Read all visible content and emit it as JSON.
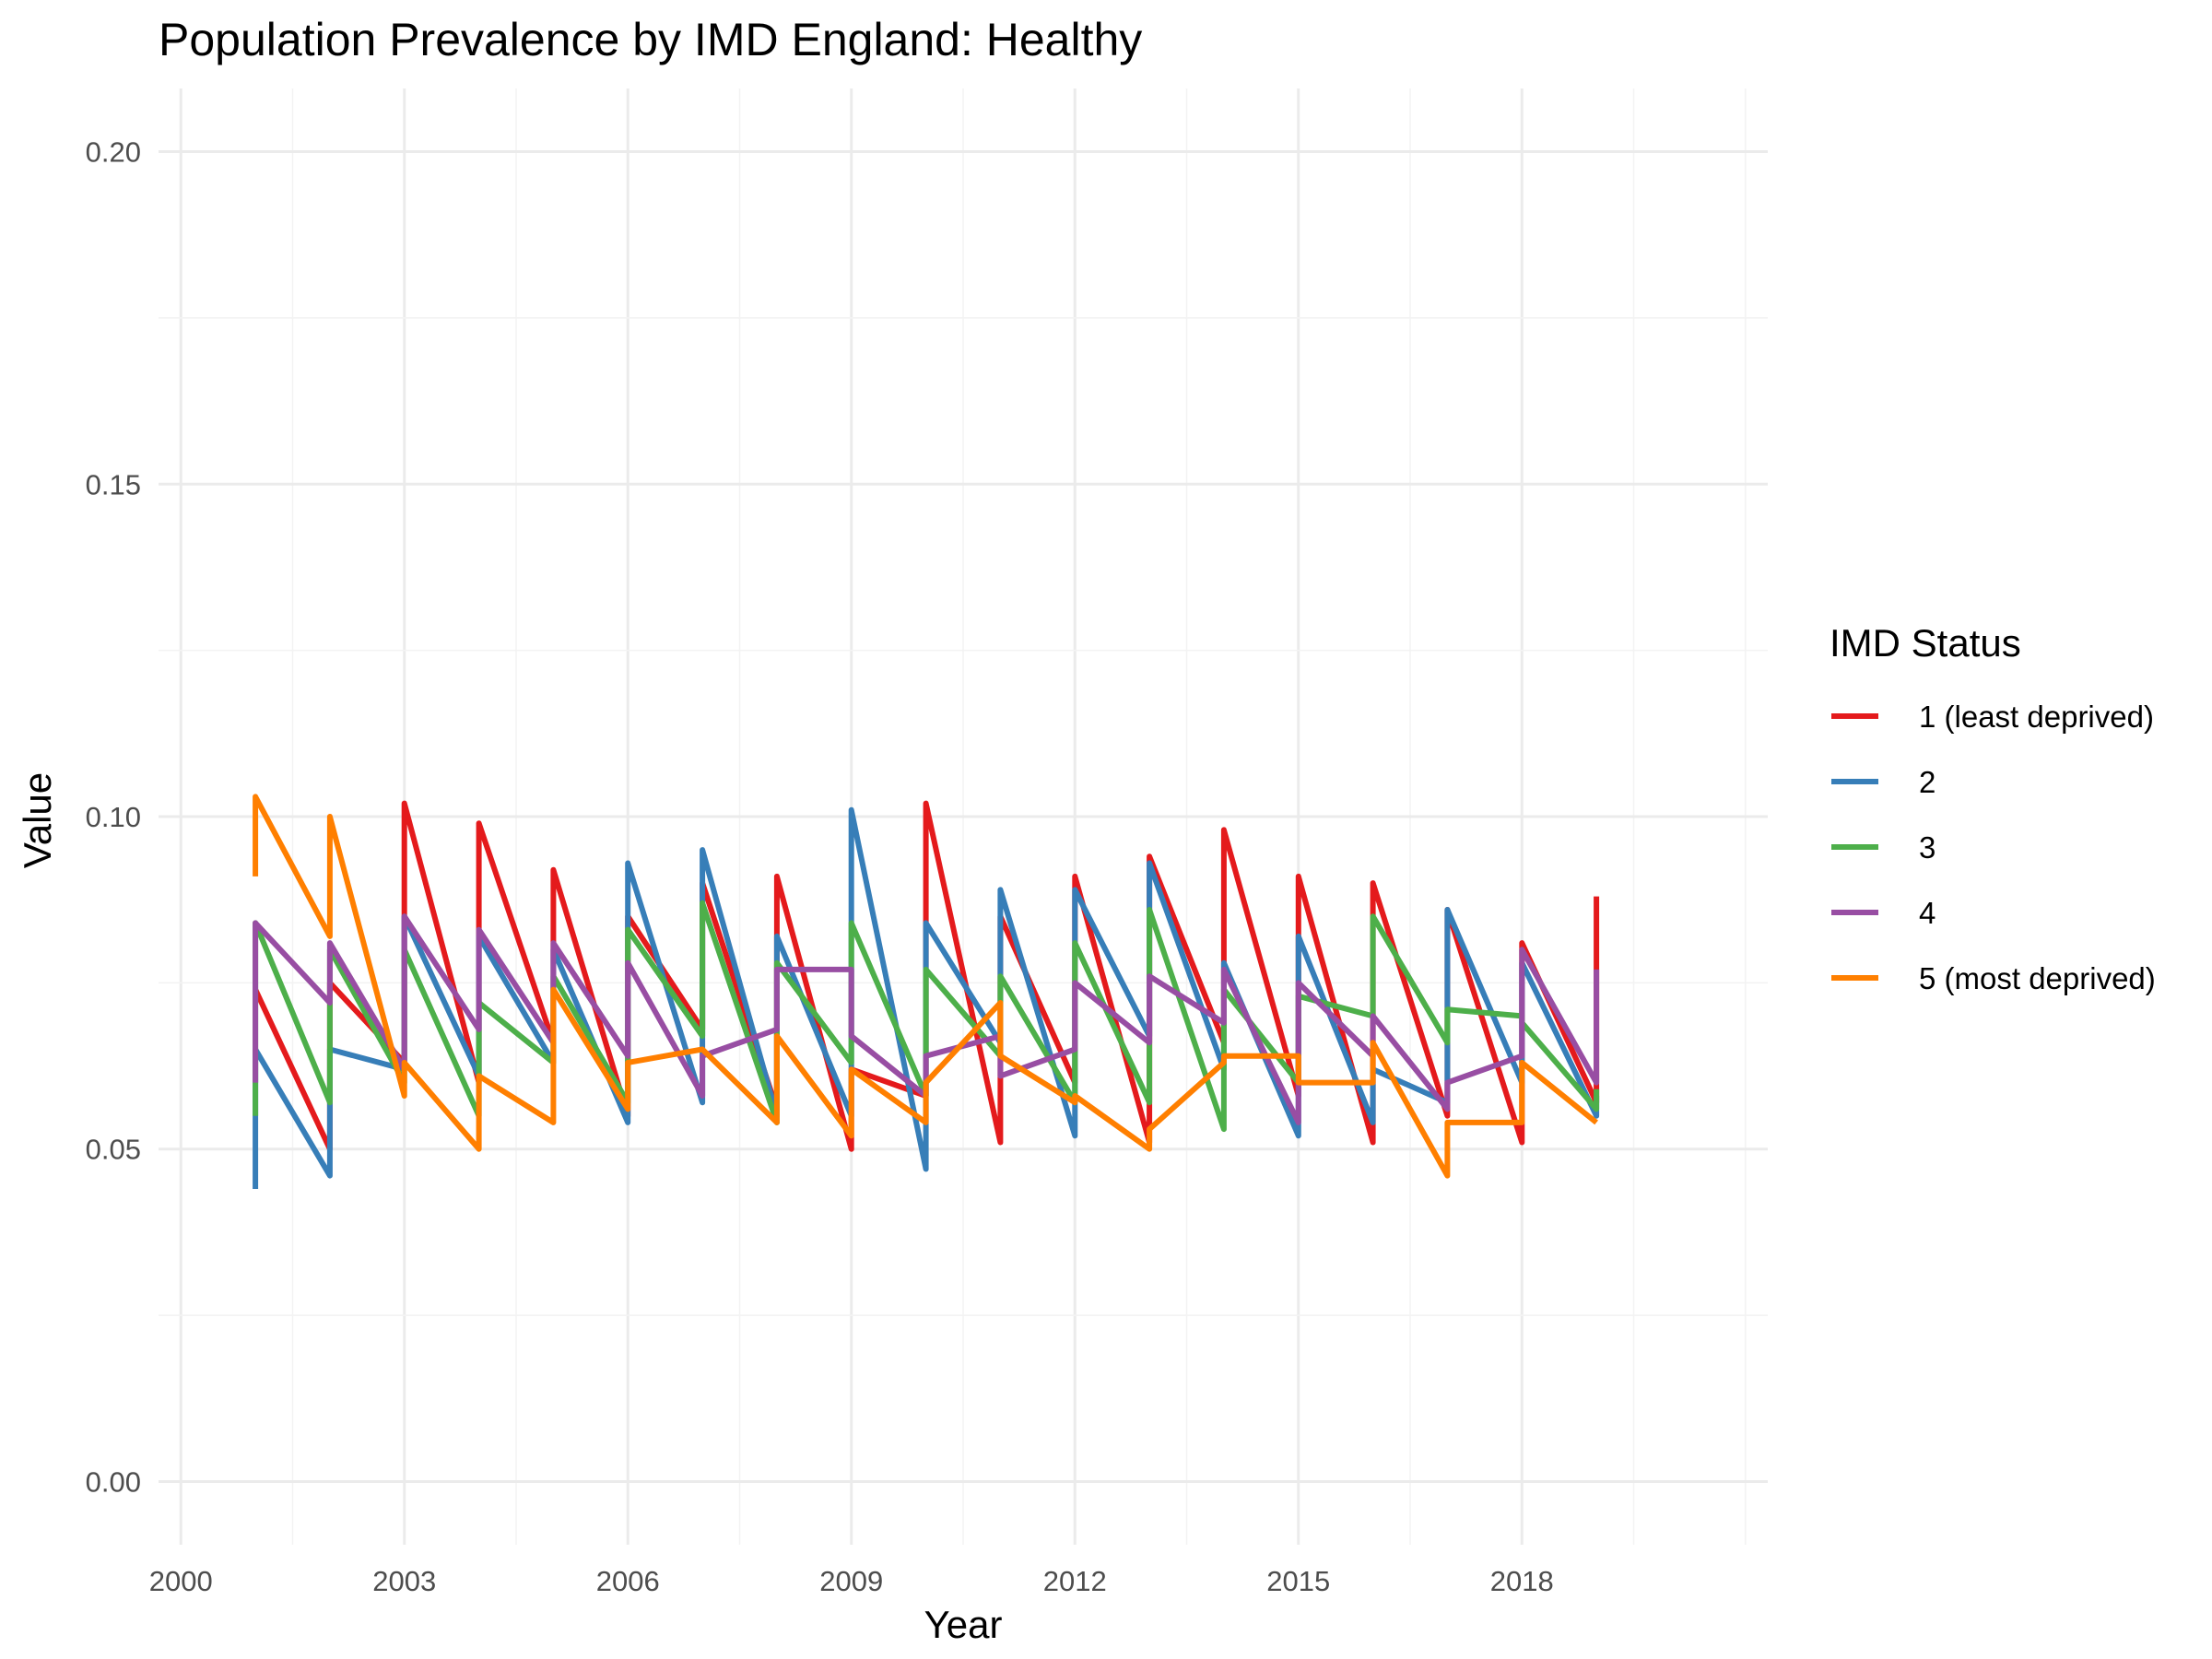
{
  "chart_data": {
    "type": "line",
    "title": "Population Prevalence by IMD England: Healthy",
    "xlabel": "Year",
    "ylabel": "Value",
    "xlim": [
      1999.7,
      2021.3
    ],
    "ylim": [
      -0.0095,
      0.2095
    ],
    "x_ticks": [
      2000,
      2003,
      2006,
      2009,
      2012,
      2015,
      2018
    ],
    "x_tick_labels": [
      "2000",
      "2003",
      "2006",
      "2009",
      "2012",
      "2015",
      "2018"
    ],
    "y_ticks": [
      0,
      0.05,
      0.1,
      0.15,
      0.2
    ],
    "y_tick_labels": [
      "0.00",
      "0.05",
      "0.10",
      "0.15",
      "0.20"
    ],
    "grid": true,
    "legend": {
      "title": "IMD Status",
      "position": "right"
    },
    "series": [
      {
        "name": "1 (least deprived)",
        "color": "#E41A1C",
        "points": [
          [
            2001,
            0.074
          ],
          [
            2002,
            0.05
          ],
          [
            2002,
            0.075
          ],
          [
            2003,
            0.063
          ],
          [
            2003,
            0.102
          ],
          [
            2004,
            0.06
          ],
          [
            2004,
            0.099
          ],
          [
            2005,
            0.066
          ],
          [
            2005,
            0.092
          ],
          [
            2006,
            0.055
          ],
          [
            2006,
            0.085
          ],
          [
            2007,
            0.068
          ],
          [
            2007,
            0.09
          ],
          [
            2008,
            0.056
          ],
          [
            2008,
            0.091
          ],
          [
            2009,
            0.05
          ],
          [
            2009,
            0.062
          ],
          [
            2010,
            0.058
          ],
          [
            2010,
            0.102
          ],
          [
            2011,
            0.051
          ],
          [
            2011,
            0.085
          ],
          [
            2012,
            0.06
          ],
          [
            2012,
            0.091
          ],
          [
            2013,
            0.051
          ],
          [
            2013,
            0.094
          ],
          [
            2014,
            0.066
          ],
          [
            2014,
            0.098
          ],
          [
            2015,
            0.058
          ],
          [
            2015,
            0.091
          ],
          [
            2016,
            0.051
          ],
          [
            2016,
            0.09
          ],
          [
            2017,
            0.055
          ],
          [
            2017,
            0.086
          ],
          [
            2018,
            0.051
          ],
          [
            2018,
            0.081
          ],
          [
            2019,
            0.057
          ],
          [
            2019,
            0.088
          ]
        ]
      },
      {
        "name": "2",
        "color": "#377EB8",
        "points": [
          [
            2001,
            0.044
          ],
          [
            2001,
            0.065
          ],
          [
            2002,
            0.046
          ],
          [
            2002,
            0.065
          ],
          [
            2003,
            0.062
          ],
          [
            2003,
            0.085
          ],
          [
            2004,
            0.061
          ],
          [
            2004,
            0.082
          ],
          [
            2005,
            0.063
          ],
          [
            2005,
            0.08
          ],
          [
            2006,
            0.054
          ],
          [
            2006,
            0.093
          ],
          [
            2007,
            0.057
          ],
          [
            2007,
            0.095
          ],
          [
            2008,
            0.055
          ],
          [
            2008,
            0.082
          ],
          [
            2009,
            0.055
          ],
          [
            2009,
            0.101
          ],
          [
            2010,
            0.047
          ],
          [
            2010,
            0.084
          ],
          [
            2011,
            0.066
          ],
          [
            2011,
            0.089
          ],
          [
            2012,
            0.052
          ],
          [
            2012,
            0.089
          ],
          [
            2013,
            0.067
          ],
          [
            2013,
            0.093
          ],
          [
            2014,
            0.062
          ],
          [
            2014,
            0.078
          ],
          [
            2015,
            0.052
          ],
          [
            2015,
            0.082
          ],
          [
            2016,
            0.054
          ],
          [
            2016,
            0.062
          ],
          [
            2017,
            0.057
          ],
          [
            2017,
            0.086
          ],
          [
            2018,
            0.06
          ],
          [
            2018,
            0.078
          ],
          [
            2019,
            0.055
          ],
          [
            2019,
            0.058
          ]
        ]
      },
      {
        "name": "3",
        "color": "#4DAF4A",
        "points": [
          [
            2001,
            0.055
          ],
          [
            2001,
            0.084
          ],
          [
            2002,
            0.057
          ],
          [
            2002,
            0.08
          ],
          [
            2003,
            0.06
          ],
          [
            2003,
            0.08
          ],
          [
            2004,
            0.055
          ],
          [
            2004,
            0.072
          ],
          [
            2005,
            0.063
          ],
          [
            2005,
            0.076
          ],
          [
            2006,
            0.057
          ],
          [
            2006,
            0.083
          ],
          [
            2007,
            0.067
          ],
          [
            2007,
            0.087
          ],
          [
            2008,
            0.054
          ],
          [
            2008,
            0.078
          ],
          [
            2009,
            0.063
          ],
          [
            2009,
            0.084
          ],
          [
            2010,
            0.058
          ],
          [
            2010,
            0.077
          ],
          [
            2011,
            0.064
          ],
          [
            2011,
            0.076
          ],
          [
            2012,
            0.057
          ],
          [
            2012,
            0.081
          ],
          [
            2013,
            0.057
          ],
          [
            2013,
            0.086
          ],
          [
            2014,
            0.053
          ],
          [
            2014,
            0.074
          ],
          [
            2015,
            0.06
          ],
          [
            2015,
            0.073
          ],
          [
            2016,
            0.07
          ],
          [
            2016,
            0.085
          ],
          [
            2017,
            0.066
          ],
          [
            2017,
            0.071
          ],
          [
            2018,
            0.07
          ],
          [
            2018,
            0.069
          ],
          [
            2019,
            0.056
          ],
          [
            2019,
            0.059
          ]
        ]
      },
      {
        "name": "4",
        "color": "#984EA3",
        "points": [
          [
            2001,
            0.06
          ],
          [
            2001,
            0.084
          ],
          [
            2002,
            0.072
          ],
          [
            2002,
            0.081
          ],
          [
            2003,
            0.062
          ],
          [
            2003,
            0.085
          ],
          [
            2004,
            0.068
          ],
          [
            2004,
            0.083
          ],
          [
            2005,
            0.066
          ],
          [
            2005,
            0.081
          ],
          [
            2006,
            0.064
          ],
          [
            2006,
            0.078
          ],
          [
            2007,
            0.058
          ],
          [
            2007,
            0.064
          ],
          [
            2008,
            0.068
          ],
          [
            2008,
            0.077
          ],
          [
            2009,
            0.077
          ],
          [
            2009,
            0.067
          ],
          [
            2010,
            0.058
          ],
          [
            2010,
            0.064
          ],
          [
            2011,
            0.067
          ],
          [
            2011,
            0.061
          ],
          [
            2012,
            0.065
          ],
          [
            2012,
            0.075
          ],
          [
            2013,
            0.066
          ],
          [
            2013,
            0.076
          ],
          [
            2014,
            0.069
          ],
          [
            2014,
            0.077
          ],
          [
            2015,
            0.054
          ],
          [
            2015,
            0.075
          ],
          [
            2016,
            0.064
          ],
          [
            2016,
            0.07
          ],
          [
            2017,
            0.056
          ],
          [
            2017,
            0.06
          ],
          [
            2018,
            0.064
          ],
          [
            2018,
            0.08
          ],
          [
            2019,
            0.06
          ],
          [
            2019,
            0.077
          ]
        ]
      },
      {
        "name": "5 (most deprived)",
        "color": "#FF7F00",
        "points": [
          [
            2001,
            0.091
          ],
          [
            2001,
            0.103
          ],
          [
            2002,
            0.082
          ],
          [
            2002,
            0.1
          ],
          [
            2003,
            0.058
          ],
          [
            2003,
            0.063
          ],
          [
            2004,
            0.05
          ],
          [
            2004,
            0.061
          ],
          [
            2005,
            0.054
          ],
          [
            2005,
            0.074
          ],
          [
            2006,
            0.056
          ],
          [
            2006,
            0.063
          ],
          [
            2007,
            0.065
          ],
          [
            2007,
            0.065
          ],
          [
            2008,
            0.054
          ],
          [
            2008,
            0.067
          ],
          [
            2009,
            0.052
          ],
          [
            2009,
            0.062
          ],
          [
            2010,
            0.054
          ],
          [
            2010,
            0.06
          ],
          [
            2011,
            0.072
          ],
          [
            2011,
            0.064
          ],
          [
            2012,
            0.057
          ],
          [
            2012,
            0.058
          ],
          [
            2013,
            0.05
          ],
          [
            2013,
            0.053
          ],
          [
            2014,
            0.063
          ],
          [
            2014,
            0.064
          ],
          [
            2015,
            0.064
          ],
          [
            2015,
            0.06
          ],
          [
            2016,
            0.06
          ],
          [
            2016,
            0.066
          ],
          [
            2017,
            0.046
          ],
          [
            2017,
            0.054
          ],
          [
            2018,
            0.054
          ],
          [
            2018,
            0.063
          ],
          [
            2019,
            0.054
          ],
          [
            2019,
            0.054
          ]
        ]
      }
    ]
  }
}
